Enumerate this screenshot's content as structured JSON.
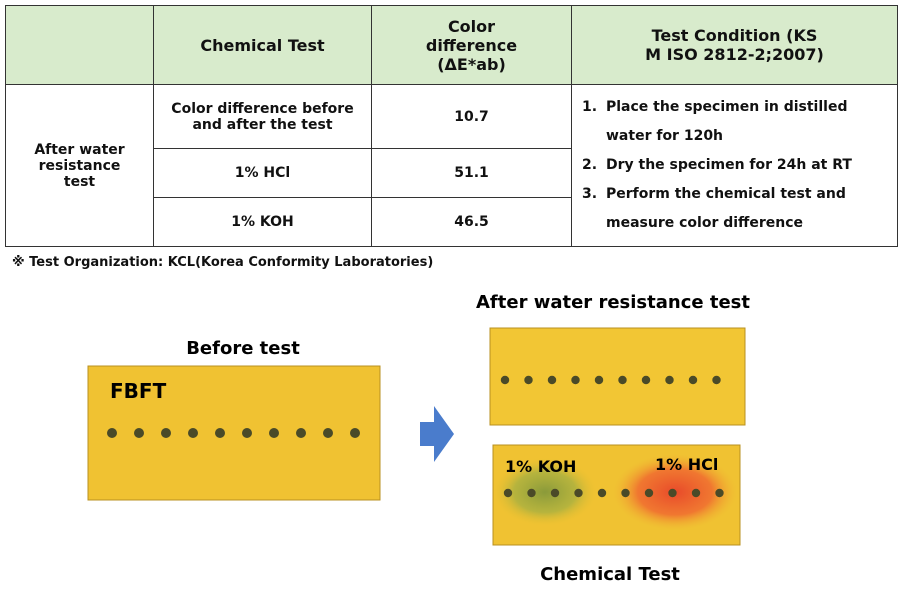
{
  "table": {
    "header": [
      "",
      "Chemical Test",
      "Color difference (ΔE*ab)",
      "Test Condition (KS M ISO 2812-2;2007)"
    ],
    "group_label": "After water resistance test",
    "rows": [
      [
        "Color difference before and after the test",
        "10.7"
      ],
      [
        "1% HCl",
        "51.1"
      ],
      [
        "1% KOH",
        "46.5"
      ]
    ],
    "conditions": [
      {
        "number": "1.",
        "text": "Place the specimen in distilled water for 120h"
      },
      {
        "number": "2.",
        "text": "Dry the specimen for 24h at RT"
      },
      {
        "number": "3.",
        "text": "Perform the chemical test and measure color difference"
      }
    ]
  },
  "note": "※ Test Organization: KCL(Korea Conformity Laboratories)",
  "images": {
    "before_title": "Before test",
    "before_label": "FBFT",
    "after_title": "After water resistance test",
    "koh_label": "1% KOH",
    "hcl_label": "1% HCl",
    "chemical_title": "Chemical Test"
  }
}
